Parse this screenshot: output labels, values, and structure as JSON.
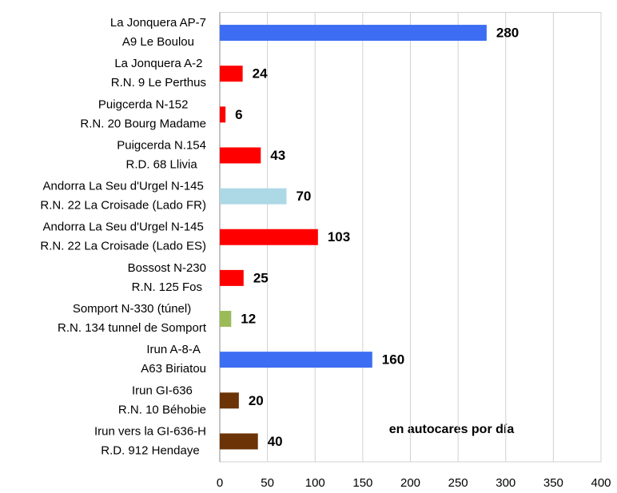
{
  "chart_data": {
    "type": "bar",
    "orientation": "horizontal",
    "categories": [
      [
        "La Jonquera AP-7",
        "A9 Le Boulou"
      ],
      [
        "La Jonquera A-2",
        "R.N. 9 Le Perthus"
      ],
      [
        "Puigcerda N-152",
        "R.N. 20 Bourg Madame"
      ],
      [
        "Puigcerda N.154",
        "R.D. 68 Llivia"
      ],
      [
        "Andorra La Seu d'Urgel N-145",
        "R.N. 22 La Croisade (Lado FR)"
      ],
      [
        "Andorra La Seu d'Urgel N-145",
        "R.N. 22 La Croisade (Lado ES)"
      ],
      [
        "Bossost N-230",
        "R.N. 125 Fos"
      ],
      [
        "Somport N-330 (túnel)",
        "R.N. 134 tunnel de Somport"
      ],
      [
        "Irun A-8-A",
        "A63 Biriatou"
      ],
      [
        "Irun GI-636",
        "R.N. 10 Béhobie"
      ],
      [
        "Irun vers la GI-636-H",
        "R.D. 912 Hendaye"
      ]
    ],
    "values": [
      280,
      24,
      6,
      43,
      70,
      103,
      25,
      12,
      160,
      20,
      40
    ],
    "colors": [
      "#3d6df2",
      "#ff0000",
      "#ff0000",
      "#ff0000",
      "#add8e6",
      "#ff0000",
      "#ff0000",
      "#9bbb59",
      "#3d6df2",
      "#6b3306",
      "#6b3306"
    ],
    "xlim": [
      0,
      400
    ],
    "xticks": [
      0,
      50,
      100,
      150,
      200,
      250,
      300,
      350,
      400
    ],
    "grid": true,
    "annotation": "en autocares por día"
  }
}
